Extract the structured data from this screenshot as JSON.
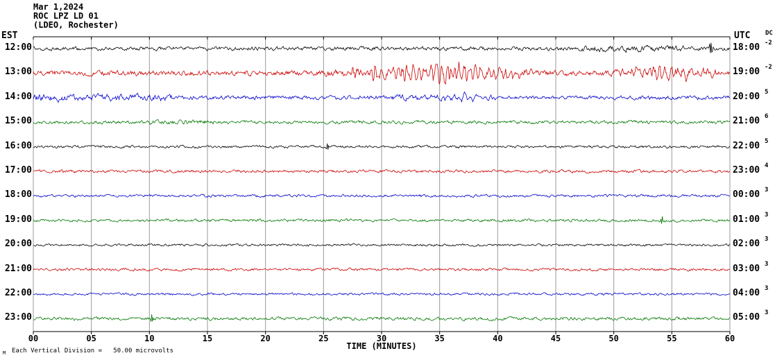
{
  "header": {
    "date": "Mar 1,2024",
    "station": "ROC LPZ LD 01",
    "network": "(LDEO, Rochester)"
  },
  "axes": {
    "left_label": "EST",
    "right_label": "UTC",
    "dc_label": "DC",
    "xlabel": "TIME (MINUTES)",
    "x_ticks": [
      "00",
      "05",
      "10",
      "15",
      "20",
      "25",
      "30",
      "35",
      "40",
      "45",
      "50",
      "55",
      "60"
    ]
  },
  "footer": {
    "scale_note": "Each Vertical Division =   50.00 microvolts",
    "corner_mark": "M"
  },
  "chart_data": {
    "type": "line",
    "title": "ROC LPZ LD 01 (LDEO, Rochester) helicorder — Mar 1,2024",
    "xlabel": "TIME (MINUTES)",
    "x_range_minutes": [
      0,
      60
    ],
    "minutes_per_row": 60,
    "grid": "vertical lines every 5 minutes",
    "scale_note": "Each Vertical Division = 50.00 microvolts",
    "colors_cycle": [
      "#000000",
      "#cc0000",
      "#0000cc",
      "#007700"
    ],
    "rows": [
      {
        "est": "12:00",
        "utc": "18:00",
        "dc": "-2",
        "color": "#000000",
        "seed": 101,
        "noise": [
          [
            0,
            47,
            2.8
          ],
          [
            47,
            56,
            4.2
          ],
          [
            56,
            60,
            3.0
          ]
        ],
        "bursts": [],
        "spikes": [
          {
            "t": 58.4,
            "amp": 15
          }
        ]
      },
      {
        "est": "13:00",
        "utc": "19:00",
        "dc": "-2",
        "color": "#cc0000",
        "seed": 202,
        "noise": [
          [
            0,
            25,
            3.6
          ],
          [
            25,
            43,
            5.5
          ],
          [
            43,
            50,
            4.2
          ],
          [
            50,
            60,
            5.0
          ]
        ],
        "bursts": [
          [
            25.5,
            43,
            10,
            0.45
          ],
          [
            50,
            60,
            7,
            0.5
          ]
        ],
        "spikes": []
      },
      {
        "est": "14:00",
        "utc": "20:00",
        "dc": "5",
        "color": "#0000cc",
        "seed": 303,
        "noise": [
          [
            0,
            12,
            5.0
          ],
          [
            12,
            30,
            3.0
          ],
          [
            30,
            40,
            4.0
          ],
          [
            40,
            60,
            2.8
          ]
        ],
        "bursts": [
          [
            33,
            39,
            3.5,
            0.55
          ]
        ],
        "spikes": []
      },
      {
        "est": "15:00",
        "utc": "21:00",
        "dc": "6",
        "color": "#007700",
        "seed": 404,
        "noise": [
          [
            0,
            10,
            2.4
          ],
          [
            10,
            16,
            3.2
          ],
          [
            16,
            60,
            2.4
          ]
        ],
        "bursts": [],
        "spikes": []
      },
      {
        "est": "16:00",
        "utc": "22:00",
        "dc": "5",
        "color": "#000000",
        "seed": 505,
        "noise": [
          [
            0,
            60,
            1.9
          ]
        ],
        "bursts": [],
        "spikes": [
          {
            "t": 25.3,
            "amp": 7
          }
        ]
      },
      {
        "est": "17:00",
        "utc": "23:00",
        "dc": "4",
        "color": "#cc0000",
        "seed": 606,
        "noise": [
          [
            0,
            60,
            2.1
          ]
        ],
        "bursts": [],
        "spikes": []
      },
      {
        "est": "18:00",
        "utc": "00:00",
        "dc": "3",
        "color": "#0000cc",
        "seed": 707,
        "noise": [
          [
            0,
            60,
            1.9
          ]
        ],
        "bursts": [],
        "spikes": []
      },
      {
        "est": "19:00",
        "utc": "01:00",
        "dc": "3",
        "color": "#007700",
        "seed": 808,
        "noise": [
          [
            0,
            60,
            2.0
          ]
        ],
        "bursts": [],
        "spikes": [
          {
            "t": 54.2,
            "amp": 9
          }
        ]
      },
      {
        "est": "20:00",
        "utc": "02:00",
        "dc": "3",
        "color": "#000000",
        "seed": 909,
        "noise": [
          [
            0,
            60,
            1.7
          ]
        ],
        "bursts": [],
        "spikes": []
      },
      {
        "est": "21:00",
        "utc": "03:00",
        "dc": "3",
        "color": "#cc0000",
        "seed": 111,
        "noise": [
          [
            0,
            60,
            1.9
          ]
        ],
        "bursts": [],
        "spikes": []
      },
      {
        "est": "22:00",
        "utc": "04:00",
        "dc": "3",
        "color": "#0000cc",
        "seed": 222,
        "noise": [
          [
            0,
            60,
            1.7
          ]
        ],
        "bursts": [],
        "spikes": []
      },
      {
        "est": "23:00",
        "utc": "05:00",
        "dc": "3",
        "color": "#007700",
        "seed": 333,
        "noise": [
          [
            0,
            60,
            2.3
          ]
        ],
        "bursts": [],
        "spikes": [
          {
            "t": 10.2,
            "amp": 6
          }
        ]
      }
    ]
  }
}
